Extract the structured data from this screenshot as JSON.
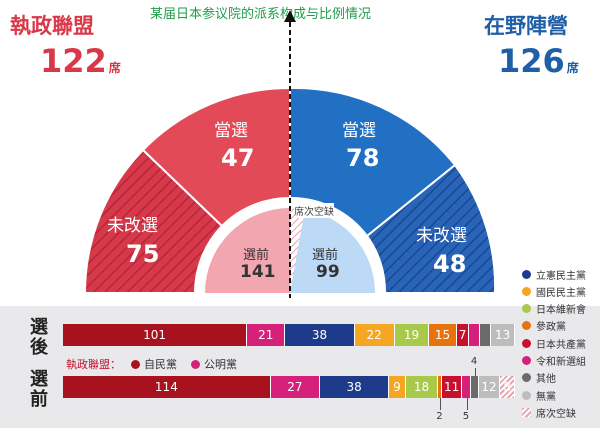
{
  "title": "某届日本参议院的派系构成与比例情况",
  "ruling": {
    "name": "執政聯盟",
    "total": "122",
    "unit": "席"
  },
  "opposition": {
    "name": "在野陣營",
    "total": "126",
    "unit": "席"
  },
  "arc": {
    "ruling_elected": {
      "label": "當選",
      "value": "47"
    },
    "ruling_unchanged": {
      "label": "未改選",
      "value": "75"
    },
    "opp_elected": {
      "label": "當選",
      "value": "78"
    },
    "opp_unchanged": {
      "label": "未改選",
      "value": "48"
    },
    "ruling_before": {
      "label": "選前",
      "value": "141"
    },
    "opp_before": {
      "label": "選前",
      "value": "99"
    },
    "vacancy": "席次空缺"
  },
  "rows": {
    "after": "選後",
    "before": "選前"
  },
  "ruling_legend": {
    "label": "執政聯盟：",
    "ldp": "自民黨",
    "komeito": "公明黨"
  },
  "legend": [
    {
      "name": "立憲民主黨",
      "color": "#1e3a8a"
    },
    {
      "name": "國民民主黨",
      "color": "#f5a623"
    },
    {
      "name": "日本維新會",
      "color": "#a8c94a"
    },
    {
      "name": "參政黨",
      "color": "#e8730c"
    },
    {
      "name": "日本共產黨",
      "color": "#c8102e"
    },
    {
      "name": "令和新選組",
      "color": "#d6217a"
    },
    {
      "name": "其他",
      "color": "#6b6b6b"
    },
    {
      "name": "無黨",
      "color": "#bdbdbd"
    },
    {
      "name": "席次空缺",
      "color": "#e8a3ad"
    }
  ],
  "chart_data": {
    "type": "bar",
    "categories": [
      "自民黨",
      "公明黨",
      "立憲民主黨",
      "國民民主黨",
      "日本維新會",
      "參政黨",
      "日本共產黨",
      "令和新選組",
      "其他",
      "無黨",
      "席次空缺"
    ],
    "series": [
      {
        "name": "選後",
        "values": [
          101,
          21,
          38,
          22,
          19,
          15,
          7,
          6,
          6,
          13,
          0
        ]
      },
      {
        "name": "選前",
        "values": [
          114,
          27,
          38,
          9,
          18,
          2,
          11,
          5,
          4,
          12,
          8
        ]
      }
    ],
    "colors": [
      "#a8121e",
      "#d6217a",
      "#1e3a8a",
      "#f5a623",
      "#a8c94a",
      "#e8730c",
      "#c8102e",
      "#d6217a",
      "#6b6b6b",
      "#bdbdbd",
      "#e8a3ad"
    ]
  }
}
